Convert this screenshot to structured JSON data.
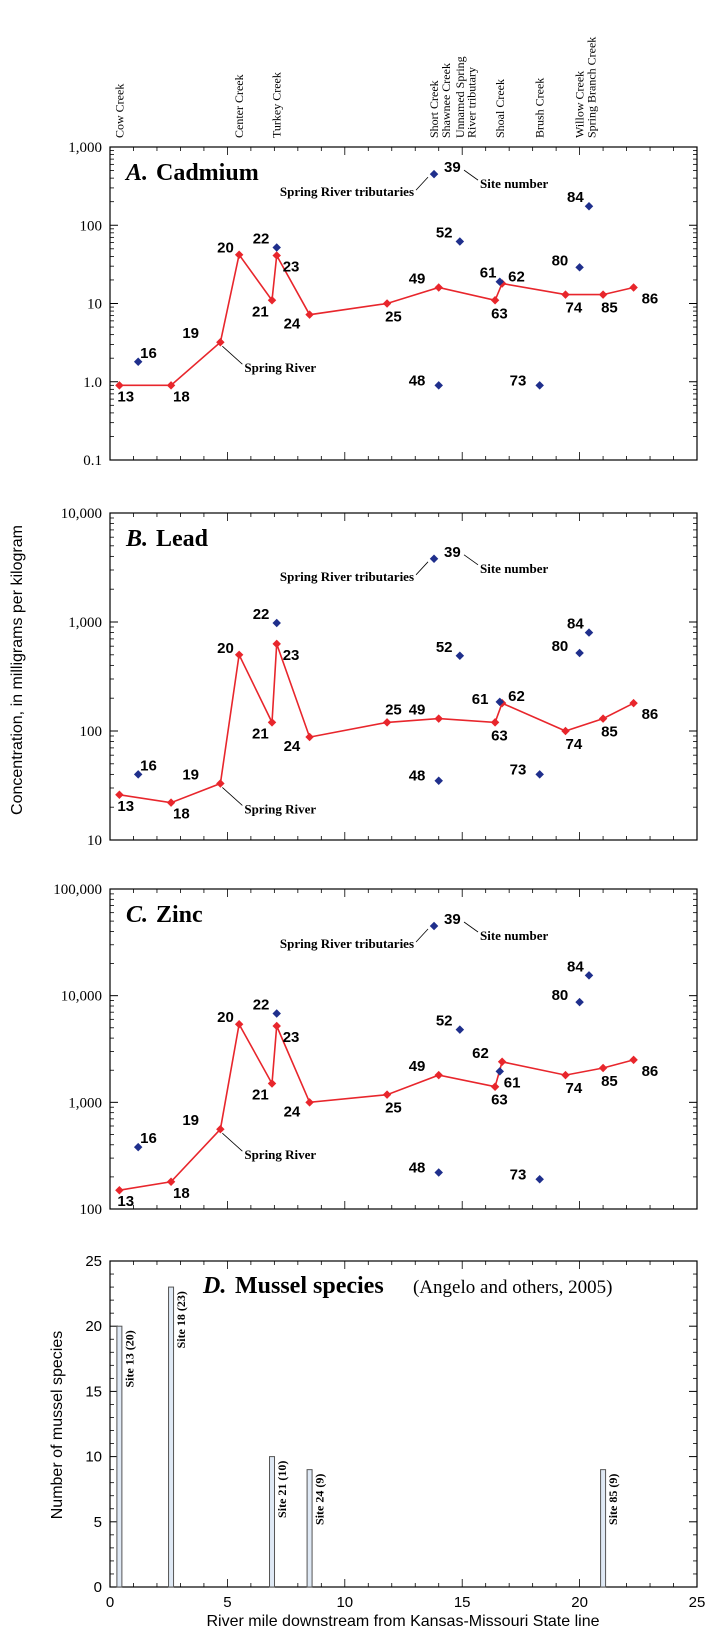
{
  "figure": {
    "ylabel_concentration": "Concentration, in milligrams per kilogram",
    "xlabel": "River mile downstream from Kansas-Missouri State line",
    "xticks": [
      "0",
      "5",
      "10",
      "15",
      "20",
      "25"
    ],
    "tributaries": [
      {
        "name": "Cow Creek",
        "mile": 0.4
      },
      {
        "name": "Center Creek",
        "mile": 5.5
      },
      {
        "name": "Turkey Creek",
        "mile": 7.1
      },
      {
        "name": "Short Creek",
        "mile": 13.8
      },
      {
        "name": "Shawnee Creek",
        "mile": 14.3
      },
      {
        "name": "Unnamed Spring",
        "mile": 14.9
      },
      {
        "name": "River tributary",
        "mile": 15.4
      },
      {
        "name": "Shoal Creek",
        "mile": 16.6
      },
      {
        "name": "Brush Creek",
        "mile": 18.3
      },
      {
        "name": "Willow Creek",
        "mile": 20.0
      },
      {
        "name": "Spring Branch Creek",
        "mile": 20.5
      }
    ],
    "colors": {
      "spring_river": "#e8262c",
      "tributary_point": "#1f2f8c",
      "bar_fill": "#dfe9f5",
      "bar_stroke": "#555555"
    }
  },
  "chart_data": [
    {
      "type": "line",
      "panel": "A.",
      "title": "Cadmium",
      "yscale": "log",
      "ylim": [
        0.1,
        1000
      ],
      "yticks": [
        "0.1",
        "1.0",
        "10",
        "100",
        "1,000"
      ],
      "xlim": [
        0,
        25
      ],
      "annotations": {
        "tributaries": "Spring River tributaries",
        "site_number": "Site number",
        "spring_river": "Spring River"
      },
      "series": [
        {
          "name": "Spring River",
          "points": [
            {
              "site": "13",
              "x": 0.4,
              "y": 0.9
            },
            {
              "site": "18",
              "x": 2.6,
              "y": 0.9
            },
            {
              "site": "19",
              "x": 4.7,
              "y": 3.2
            },
            {
              "site": "20",
              "x": 5.5,
              "y": 42
            },
            {
              "site": "21",
              "x": 6.9,
              "y": 11
            },
            {
              "site": "23",
              "x": 7.1,
              "y": 41
            },
            {
              "site": "24",
              "x": 8.5,
              "y": 7.2
            },
            {
              "site": "25",
              "x": 11.8,
              "y": 10
            },
            {
              "site": "49",
              "x": 14.0,
              "y": 16
            },
            {
              "site": "63",
              "x": 16.4,
              "y": 11
            },
            {
              "site": "62",
              "x": 16.7,
              "y": 18
            },
            {
              "site": "74",
              "x": 19.4,
              "y": 13
            },
            {
              "site": "85",
              "x": 21.0,
              "y": 13
            },
            {
              "site": "86",
              "x": 22.3,
              "y": 16
            }
          ]
        },
        {
          "name": "Spring River tributaries",
          "points": [
            {
              "site": "16",
              "x": 1.2,
              "y": 1.8
            },
            {
              "site": "22",
              "x": 7.1,
              "y": 52
            },
            {
              "site": "39",
              "x": 13.8,
              "y": 450
            },
            {
              "site": "52",
              "x": 14.9,
              "y": 62
            },
            {
              "site": "48",
              "x": 14.0,
              "y": 0.9
            },
            {
              "site": "61",
              "x": 16.6,
              "y": 19
            },
            {
              "site": "73",
              "x": 18.3,
              "y": 0.9
            },
            {
              "site": "80",
              "x": 20.0,
              "y": 29
            },
            {
              "site": "84",
              "x": 20.4,
              "y": 175
            }
          ]
        }
      ]
    },
    {
      "type": "line",
      "panel": "B.",
      "title": "Lead",
      "yscale": "log",
      "ylim": [
        10,
        10000
      ],
      "yticks": [
        "10",
        "100",
        "1,000",
        "10,000"
      ],
      "xlim": [
        0,
        25
      ],
      "annotations": {
        "tributaries": "Spring River tributaries",
        "site_number": "Site number",
        "spring_river": "Spring River"
      },
      "series": [
        {
          "name": "Spring River",
          "points": [
            {
              "site": "13",
              "x": 0.4,
              "y": 26
            },
            {
              "site": "18",
              "x": 2.6,
              "y": 22
            },
            {
              "site": "19",
              "x": 4.7,
              "y": 33
            },
            {
              "site": "20",
              "x": 5.5,
              "y": 500
            },
            {
              "site": "21",
              "x": 6.9,
              "y": 120
            },
            {
              "site": "23",
              "x": 7.1,
              "y": 630
            },
            {
              "site": "24",
              "x": 8.5,
              "y": 88
            },
            {
              "site": "25",
              "x": 11.8,
              "y": 120
            },
            {
              "site": "49",
              "x": 14.0,
              "y": 130
            },
            {
              "site": "63",
              "x": 16.4,
              "y": 120
            },
            {
              "site": "62",
              "x": 16.7,
              "y": 180
            },
            {
              "site": "74",
              "x": 19.4,
              "y": 100
            },
            {
              "site": "85",
              "x": 21.0,
              "y": 130
            },
            {
              "site": "86",
              "x": 22.3,
              "y": 180
            }
          ]
        },
        {
          "name": "Spring River tributaries",
          "points": [
            {
              "site": "16",
              "x": 1.2,
              "y": 40
            },
            {
              "site": "22",
              "x": 7.1,
              "y": 980
            },
            {
              "site": "39",
              "x": 13.8,
              "y": 3800
            },
            {
              "site": "52",
              "x": 14.9,
              "y": 490
            },
            {
              "site": "48",
              "x": 14.0,
              "y": 35
            },
            {
              "site": "61",
              "x": 16.6,
              "y": 185
            },
            {
              "site": "73",
              "x": 18.3,
              "y": 40
            },
            {
              "site": "80",
              "x": 20.0,
              "y": 520
            },
            {
              "site": "84",
              "x": 20.4,
              "y": 800
            }
          ]
        }
      ]
    },
    {
      "type": "line",
      "panel": "C.",
      "title": "Zinc",
      "yscale": "log",
      "ylim": [
        100,
        100000
      ],
      "yticks": [
        "100",
        "1,000",
        "10,000",
        "100,000"
      ],
      "xlim": [
        0,
        25
      ],
      "annotations": {
        "tributaries": "Spring River tributaries",
        "site_number": "Site number",
        "spring_river": "Spring River"
      },
      "series": [
        {
          "name": "Spring River",
          "points": [
            {
              "site": "13",
              "x": 0.4,
              "y": 150
            },
            {
              "site": "18",
              "x": 2.6,
              "y": 180
            },
            {
              "site": "19",
              "x": 4.7,
              "y": 560
            },
            {
              "site": "20",
              "x": 5.5,
              "y": 5400
            },
            {
              "site": "21",
              "x": 6.9,
              "y": 1500
            },
            {
              "site": "23",
              "x": 7.1,
              "y": 5200
            },
            {
              "site": "24",
              "x": 8.5,
              "y": 1000
            },
            {
              "site": "25",
              "x": 11.8,
              "y": 1180
            },
            {
              "site": "49",
              "x": 14.0,
              "y": 1800
            },
            {
              "site": "63",
              "x": 16.4,
              "y": 1400
            },
            {
              "site": "62",
              "x": 16.7,
              "y": 2400
            },
            {
              "site": "74",
              "x": 19.4,
              "y": 1800
            },
            {
              "site": "85",
              "x": 21.0,
              "y": 2100
            },
            {
              "site": "86",
              "x": 22.3,
              "y": 2500
            }
          ]
        },
        {
          "name": "Spring River tributaries",
          "points": [
            {
              "site": "16",
              "x": 1.2,
              "y": 380
            },
            {
              "site": "22",
              "x": 7.1,
              "y": 6800
            },
            {
              "site": "39",
              "x": 13.8,
              "y": 45000
            },
            {
              "site": "52",
              "x": 14.9,
              "y": 4800
            },
            {
              "site": "48",
              "x": 14.0,
              "y": 220
            },
            {
              "site": "61",
              "x": 16.6,
              "y": 1950
            },
            {
              "site": "73",
              "x": 18.3,
              "y": 190
            },
            {
              "site": "80",
              "x": 20.0,
              "y": 8700
            },
            {
              "site": "84",
              "x": 20.4,
              "y": 15500
            }
          ]
        }
      ]
    },
    {
      "type": "bar",
      "panel": "D.",
      "title": "Mussel species",
      "subtitle": "(Angelo and others, 2005)",
      "ylabel": "Number of mussel species",
      "ylim": [
        0,
        25
      ],
      "yticks": [
        "0",
        "5",
        "10",
        "15",
        "20",
        "25"
      ],
      "xlim": [
        0,
        25
      ],
      "bars": [
        {
          "label": "Site 13 (20)",
          "x": 0.4,
          "value": 20
        },
        {
          "label": "Site 18 (23)",
          "x": 2.6,
          "value": 23
        },
        {
          "label": "Site 21 (10)",
          "x": 6.9,
          "value": 10
        },
        {
          "label": "Site 24 (9)",
          "x": 8.5,
          "value": 9
        },
        {
          "label": "Site 85 (9)",
          "x": 21.0,
          "value": 9
        }
      ]
    }
  ]
}
